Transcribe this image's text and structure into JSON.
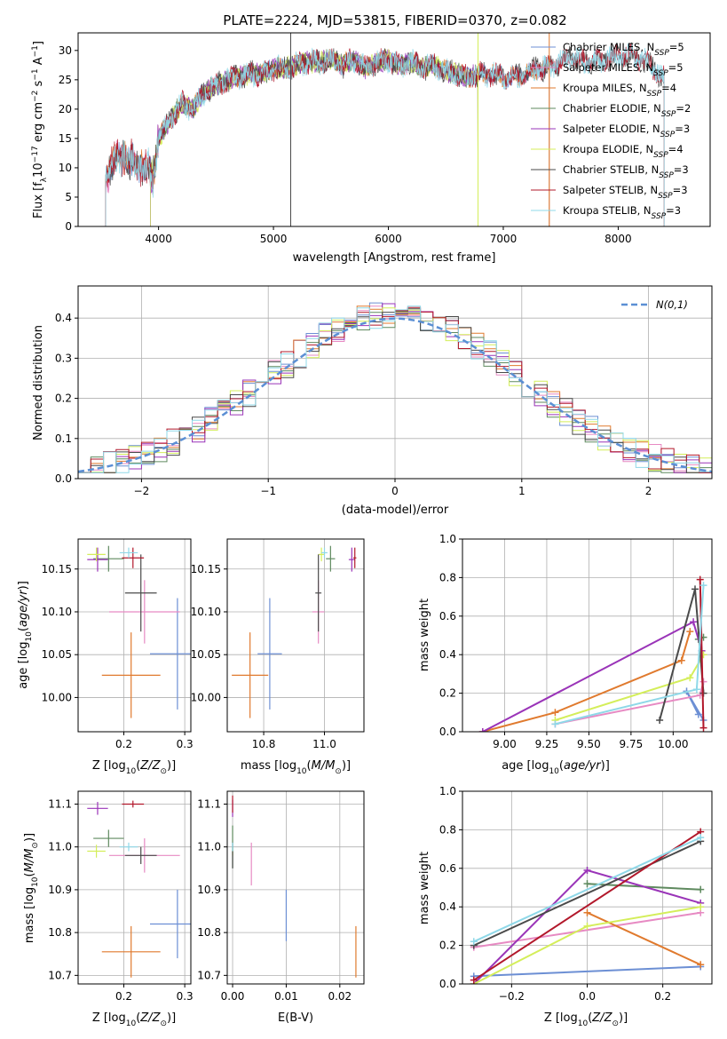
{
  "figure": {
    "title": "PLATE=2224, MJD=53815, FIBERID=0370, z=0.082"
  },
  "colors": {
    "Chabrier MILES": "#6c8fd4",
    "Salpeter MILES": "#e78ac3",
    "Kroupa MILES": "#e07a2e",
    "Chabrier ELODIE": "#5f8a5f",
    "Salpeter ELODIE": "#9a34b8",
    "Kroupa ELODIE": "#d4ee5a",
    "Chabrier STELIB": "#4a4a4a",
    "Salpeter STELIB": "#b2182b",
    "Kroupa STELIB": "#8fd8e8"
  },
  "chart_data": [
    {
      "id": "spectrum",
      "type": "line",
      "title": "PLATE=2224, MJD=53815, FIBERID=0370, z=0.082",
      "xlabel": "wavelength [Angstrom, rest frame]",
      "ylabel": "Flux [f_λ10^-17 erg cm^-2 s^-1 A^-1]",
      "xlim": [
        3300,
        8800
      ],
      "ylim": [
        0,
        33
      ],
      "xticks": [
        4000,
        5000,
        6000,
        7000,
        8000
      ],
      "yticks": [
        0,
        5,
        10,
        15,
        20,
        25,
        30
      ],
      "grid": false,
      "legend_position": "right",
      "continuum_anchor_points": {
        "x": [
          3540,
          3600,
          3700,
          3800,
          3900,
          3950,
          4000,
          4100,
          4200,
          4300,
          4400,
          4500,
          4600,
          4700,
          4800,
          4900,
          5000,
          5100,
          5200,
          5300,
          5400,
          5500,
          5600,
          5700,
          5800,
          5900,
          6000,
          6100,
          6200,
          6300,
          6400,
          6500,
          6600,
          6700,
          6800,
          6900,
          7000,
          7100,
          7200,
          7300,
          7400,
          7500,
          7600,
          7700,
          7800,
          7900,
          8000,
          8100,
          8200,
          8300,
          8400
        ],
        "y": [
          8.5,
          11,
          12,
          10.5,
          10,
          8,
          15,
          18,
          21,
          20,
          23,
          24,
          25,
          25.5,
          26,
          26,
          27,
          27,
          27.5,
          28,
          28,
          28.5,
          27.5,
          28.5,
          27,
          28,
          28.5,
          27.5,
          28,
          27,
          27.5,
          26.5,
          26,
          25.5,
          26,
          26,
          25.5,
          25.5,
          26,
          27,
          27,
          28,
          29,
          28,
          28,
          28.5,
          29,
          29.5,
          28.5,
          27,
          25
        ]
      },
      "series": [
        {
          "name": "Chabrier MILES, N_SSP=5",
          "model": "Chabrier MILES",
          "n_ssp": "5",
          "xrange": [
            3540,
            7400
          ]
        },
        {
          "name": "Salpeter MILES, N_SSP=5",
          "model": "Salpeter MILES",
          "n_ssp": "5",
          "xrange": [
            3540,
            7400
          ]
        },
        {
          "name": "Kroupa MILES, N_SSP=4",
          "model": "Kroupa MILES",
          "n_ssp": "4",
          "xrange": [
            3540,
            7400
          ]
        },
        {
          "name": "Chabrier ELODIE, N_SSP=2",
          "model": "Chabrier ELODIE",
          "n_ssp": "2",
          "xrange": [
            3930,
            6780
          ]
        },
        {
          "name": "Salpeter ELODIE, N_SSP=3",
          "model": "Salpeter ELODIE",
          "n_ssp": "3",
          "xrange": [
            3930,
            6780
          ]
        },
        {
          "name": "Kroupa ELODIE, N_SSP=4",
          "model": "Kroupa ELODIE",
          "n_ssp": "4",
          "xrange": [
            3930,
            6780
          ]
        },
        {
          "name": "Chabrier STELIB, N_SSP=3",
          "model": "Chabrier STELIB",
          "n_ssp": "3",
          "xrange": [
            3540,
            8400
          ]
        },
        {
          "name": "Salpeter STELIB, N_SSP=3",
          "model": "Salpeter STELIB",
          "n_ssp": "3",
          "xrange": [
            3540,
            8400
          ]
        },
        {
          "name": "Kroupa STELIB, N_SSP=3",
          "model": "Kroupa STELIB",
          "n_ssp": "3",
          "xrange": [
            3540,
            8400
          ]
        }
      ],
      "annotations": [
        {
          "type": "vline",
          "x": 5150,
          "color": "#4a4a4a"
        },
        {
          "type": "vline",
          "x": 6780,
          "color": "#d4ee5a"
        },
        {
          "type": "vline",
          "x": 7400,
          "color": "#e07a2e"
        }
      ]
    },
    {
      "id": "residuals",
      "type": "step",
      "xlabel": "(data-model)/error",
      "ylabel": "Normed distribution",
      "xlim": [
        -2.5,
        2.5
      ],
      "ylim": [
        0,
        0.48
      ],
      "xticks": [
        -2,
        -1,
        0,
        1,
        2
      ],
      "yticks": [
        0.0,
        0.1,
        0.2,
        0.3,
        0.4
      ],
      "grid": true,
      "bin_width": 0.1,
      "legend": [
        {
          "label": "N(0,1)",
          "color": "#5b8fd4",
          "style": "dashed"
        }
      ],
      "legend_position": "upper right",
      "reference_curve": {
        "name": "N(0,1)",
        "mean": 0,
        "sigma": 1,
        "color": "#5b8fd4"
      },
      "series_models": [
        "Chabrier MILES",
        "Salpeter MILES",
        "Kroupa MILES",
        "Chabrier ELODIE",
        "Salpeter ELODIE",
        "Kroupa ELODIE",
        "Chabrier STELIB",
        "Salpeter STELIB",
        "Kroupa STELIB"
      ]
    },
    {
      "id": "age_vs_Z",
      "type": "errorbar",
      "xlabel": "Z [log10(Z/Z⊙)]",
      "ylabel": "age [log10(age/yr)]",
      "xlim": [
        0.125,
        0.31
      ],
      "ylim": [
        9.96,
        10.185
      ],
      "xticks": [
        0.2,
        0.3
      ],
      "yticks": [
        10.0,
        10.05,
        10.1,
        10.15
      ],
      "grid": true,
      "points": [
        {
          "model": "Chabrier MILES",
          "x": 0.288,
          "xerr": 0.045,
          "y": 10.051,
          "yerr": 0.065
        },
        {
          "model": "Salpeter MILES",
          "x": 0.234,
          "xerr": 0.058,
          "y": 10.1,
          "yerr": 0.037
        },
        {
          "model": "Kroupa MILES",
          "x": 0.212,
          "xerr": 0.048,
          "y": 10.026,
          "yerr": 0.05
        },
        {
          "model": "Chabrier ELODIE",
          "x": 0.175,
          "xerr": 0.025,
          "y": 10.162,
          "yerr": 0.015
        },
        {
          "model": "Salpeter ELODIE",
          "x": 0.157,
          "xerr": 0.017,
          "y": 10.161,
          "yerr": 0.014
        },
        {
          "model": "Kroupa ELODIE",
          "x": 0.155,
          "xerr": 0.015,
          "y": 10.167,
          "yerr": 0.008
        },
        {
          "model": "Chabrier STELIB",
          "x": 0.228,
          "xerr": 0.026,
          "y": 10.122,
          "yerr": 0.045
        },
        {
          "model": "Salpeter STELIB",
          "x": 0.215,
          "xerr": 0.018,
          "y": 10.163,
          "yerr": 0.012
        },
        {
          "model": "Kroupa STELIB",
          "x": 0.208,
          "xerr": 0.015,
          "y": 10.169,
          "yerr": 0.006
        }
      ]
    },
    {
      "id": "age_vs_mass",
      "type": "errorbar",
      "xlabel": "mass [log10(M/M⊙)]",
      "ylabel": "",
      "xlim": [
        10.68,
        11.13
      ],
      "ylim": [
        9.96,
        10.185
      ],
      "xticks": [
        10.8,
        11.0
      ],
      "yticks": [
        10.0,
        10.05,
        10.1,
        10.15
      ],
      "grid": true,
      "points": [
        {
          "model": "Chabrier MILES",
          "x": 10.82,
          "xerr": 0.04,
          "y": 10.051,
          "yerr": 0.065
        },
        {
          "model": "Salpeter MILES",
          "x": 10.98,
          "xerr": 0.02,
          "y": 10.1,
          "yerr": 0.037
        },
        {
          "model": "Kroupa MILES",
          "x": 10.755,
          "xerr": 0.06,
          "y": 10.026,
          "yerr": 0.05
        },
        {
          "model": "Chabrier ELODIE",
          "x": 11.02,
          "xerr": 0.015,
          "y": 10.162,
          "yerr": 0.015
        },
        {
          "model": "Salpeter ELODIE",
          "x": 11.09,
          "xerr": 0.01,
          "y": 10.161,
          "yerr": 0.014
        },
        {
          "model": "Kroupa ELODIE",
          "x": 10.99,
          "xerr": 0.01,
          "y": 10.167,
          "yerr": 0.008
        },
        {
          "model": "Chabrier STELIB",
          "x": 10.98,
          "xerr": 0.01,
          "y": 10.122,
          "yerr": 0.045
        },
        {
          "model": "Salpeter STELIB",
          "x": 11.1,
          "xerr": 0.005,
          "y": 10.163,
          "yerr": 0.012
        },
        {
          "model": "Kroupa STELIB",
          "x": 11.0,
          "xerr": 0.01,
          "y": 10.169,
          "yerr": 0.006
        }
      ]
    },
    {
      "id": "weight_vs_age",
      "type": "line",
      "xlabel": "age [log10(age/yr)]",
      "ylabel": "mass weight",
      "xlim": [
        8.75,
        10.23
      ],
      "ylim": [
        0,
        1.0
      ],
      "xticks": [
        9.0,
        9.25,
        9.5,
        9.75,
        10.0
      ],
      "yticks": [
        0.0,
        0.2,
        0.4,
        0.6,
        0.8,
        1.0
      ],
      "grid": true,
      "series": [
        {
          "model": "Chabrier MILES",
          "x": [
            10.15,
            10.08,
            10.18
          ],
          "y": [
            0.09,
            0.21,
            0.06
          ]
        },
        {
          "model": "Salpeter MILES",
          "x": [
            9.3,
            10.16,
            10.18
          ],
          "y": [
            0.04,
            0.19,
            0.26
          ]
        },
        {
          "model": "Kroupa MILES",
          "x": [
            8.87,
            9.3,
            10.05,
            10.1
          ],
          "y": [
            0.0,
            0.1,
            0.37,
            0.52
          ]
        },
        {
          "model": "Chabrier ELODIE",
          "x": [
            10.15,
            10.18
          ],
          "y": [
            0.48,
            0.49
          ]
        },
        {
          "model": "Salpeter ELODIE",
          "x": [
            8.87,
            10.12,
            10.17
          ],
          "y": [
            0.0,
            0.57,
            0.42
          ]
        },
        {
          "model": "Kroupa ELODIE",
          "x": [
            9.3,
            10.1,
            10.18
          ],
          "y": [
            0.06,
            0.28,
            0.4
          ]
        },
        {
          "model": "Chabrier STELIB",
          "x": [
            9.92,
            10.13,
            10.18
          ],
          "y": [
            0.06,
            0.74,
            0.2
          ]
        },
        {
          "model": "Salpeter STELIB",
          "x": [
            10.16,
            10.18
          ],
          "y": [
            0.79,
            0.02
          ]
        },
        {
          "model": "Kroupa STELIB",
          "x": [
            9.3,
            10.14,
            10.18
          ],
          "y": [
            0.04,
            0.22,
            0.76
          ]
        }
      ]
    },
    {
      "id": "mass_vs_Z",
      "type": "errorbar",
      "xlabel": "Z [log10(Z/Z⊙)]",
      "ylabel": "mass [log10(M/M⊙)]",
      "xlim": [
        0.125,
        0.31
      ],
      "ylim": [
        10.68,
        11.13
      ],
      "xticks": [
        0.2,
        0.3
      ],
      "yticks": [
        10.7,
        10.8,
        10.9,
        11.0,
        11.1
      ],
      "grid": true,
      "points": [
        {
          "model": "Chabrier MILES",
          "x": 0.288,
          "xerr": 0.045,
          "y": 10.82,
          "yerr": 0.08
        },
        {
          "model": "Salpeter MILES",
          "x": 0.234,
          "xerr": 0.058,
          "y": 10.98,
          "yerr": 0.04
        },
        {
          "model": "Kroupa MILES",
          "x": 0.212,
          "xerr": 0.048,
          "y": 10.755,
          "yerr": 0.06
        },
        {
          "model": "Chabrier ELODIE",
          "x": 0.175,
          "xerr": 0.025,
          "y": 11.02,
          "yerr": 0.02
        },
        {
          "model": "Salpeter ELODIE",
          "x": 0.157,
          "xerr": 0.017,
          "y": 11.09,
          "yerr": 0.015
        },
        {
          "model": "Kroupa ELODIE",
          "x": 0.155,
          "xerr": 0.015,
          "y": 10.99,
          "yerr": 0.015
        },
        {
          "model": "Chabrier STELIB",
          "x": 0.228,
          "xerr": 0.026,
          "y": 10.98,
          "yerr": 0.02
        },
        {
          "model": "Salpeter STELIB",
          "x": 0.215,
          "xerr": 0.018,
          "y": 11.1,
          "yerr": 0.008
        },
        {
          "model": "Kroupa STELIB",
          "x": 0.208,
          "xerr": 0.015,
          "y": 11.0,
          "yerr": 0.01
        }
      ]
    },
    {
      "id": "mass_vs_ebv",
      "type": "errorbar",
      "xlabel": "E(B-V)",
      "ylabel": "",
      "xlim": [
        -0.001,
        0.0245
      ],
      "ylim": [
        10.68,
        11.13
      ],
      "xticks": [
        0.0,
        0.01,
        0.02
      ],
      "yticks": [
        10.7,
        10.8,
        10.9,
        11.0,
        11.1
      ],
      "grid": true,
      "points": [
        {
          "model": "Chabrier MILES",
          "x": 0.01,
          "xerr": 0,
          "y": 10.84,
          "yerr": 0.06
        },
        {
          "model": "Salpeter MILES",
          "x": 0.0035,
          "xerr": 0,
          "y": 10.96,
          "yerr": 0.05
        },
        {
          "model": "Kroupa MILES",
          "x": 0.023,
          "xerr": 0,
          "y": 10.755,
          "yerr": 0.06
        },
        {
          "model": "Chabrier ELODIE",
          "x": 0.0,
          "xerr": 0,
          "y": 11.0,
          "yerr": 0.05
        },
        {
          "model": "Salpeter ELODIE",
          "x": 0.0,
          "xerr": 0,
          "y": 11.09,
          "yerr": 0.02
        },
        {
          "model": "Kroupa ELODIE",
          "x": 0.0,
          "xerr": 0,
          "y": 10.99,
          "yerr": 0.01
        },
        {
          "model": "Chabrier STELIB",
          "x": 0.0,
          "xerr": 0,
          "y": 10.98,
          "yerr": 0.03
        },
        {
          "model": "Salpeter STELIB",
          "x": 0.0,
          "xerr": 0,
          "y": 11.1,
          "yerr": 0.02
        },
        {
          "model": "Kroupa STELIB",
          "x": 0.0,
          "xerr": 0,
          "y": 11.0,
          "yerr": 0.01
        }
      ]
    },
    {
      "id": "weight_vs_Z",
      "type": "line",
      "xlabel": "Z [log10(Z/Z⊙)]",
      "ylabel": "mass weight",
      "xlim": [
        -0.33,
        0.33
      ],
      "ylim": [
        0,
        1.0
      ],
      "xticks": [
        -0.2,
        0.0,
        0.2
      ],
      "yticks": [
        0.0,
        0.2,
        0.4,
        0.6,
        0.8,
        1.0
      ],
      "grid": true,
      "series": [
        {
          "model": "Chabrier MILES",
          "x": [
            -0.3,
            0.3
          ],
          "y": [
            0.04,
            0.09
          ]
        },
        {
          "model": "Salpeter MILES",
          "x": [
            -0.3,
            0.3
          ],
          "y": [
            0.19,
            0.37
          ]
        },
        {
          "model": "Kroupa MILES",
          "x": [
            0.0,
            0.3
          ],
          "y": [
            0.37,
            0.1
          ]
        },
        {
          "model": "Chabrier ELODIE",
          "x": [
            0.0,
            0.3
          ],
          "y": [
            0.52,
            0.49
          ]
        },
        {
          "model": "Salpeter ELODIE",
          "x": [
            -0.3,
            0.0,
            0.3
          ],
          "y": [
            0.0,
            0.59,
            0.42
          ]
        },
        {
          "model": "Kroupa ELODIE",
          "x": [
            -0.3,
            0.0,
            0.3
          ],
          "y": [
            0.0,
            0.3,
            0.4
          ]
        },
        {
          "model": "Chabrier STELIB",
          "x": [
            -0.3,
            0.3
          ],
          "y": [
            0.2,
            0.74
          ]
        },
        {
          "model": "Salpeter STELIB",
          "x": [
            -0.3,
            0.3
          ],
          "y": [
            0.02,
            0.79
          ]
        },
        {
          "model": "Kroupa STELIB",
          "x": [
            -0.3,
            0.3
          ],
          "y": [
            0.22,
            0.76
          ]
        }
      ]
    }
  ]
}
